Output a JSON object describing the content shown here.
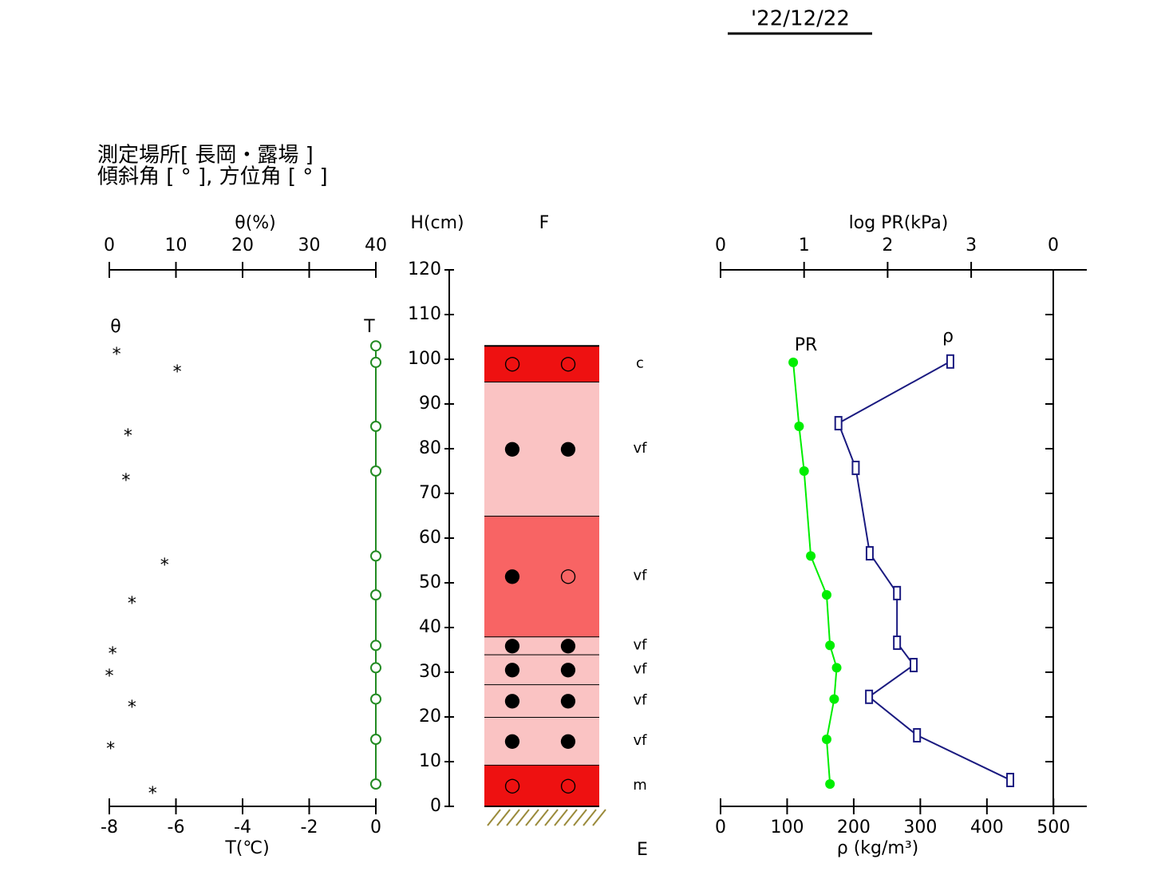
{
  "header": {
    "date": "'22/12/22",
    "site": "測定場所[ 長岡・露場 ]",
    "angles": "傾斜角 [ ° ], 方位角 [ ° ]"
  },
  "chart_data": [
    {
      "type": "profile",
      "xlabel_top": "θ(%)",
      "xlim_top": [
        0,
        40
      ],
      "xticks_top": [
        0,
        10,
        20,
        30,
        40
      ],
      "xlabel": "T(℃)",
      "xlim": [
        -8,
        0
      ],
      "xticks": [
        -8,
        -6,
        -4,
        -2,
        0
      ],
      "series": [
        {
          "name": "θ",
          "axis": "top",
          "marker": "*",
          "color": "#000000",
          "line": false,
          "values": [
            1.1,
            10.2,
            2.8,
            2.5,
            8.3,
            3.4,
            0.5,
            0,
            3.4,
            0.2,
            6.5
          ],
          "heights": [
            101.6,
            97.7,
            83.4,
            73.4,
            54.5,
            45.9,
            34.6,
            29.6,
            22.7,
            13.4,
            3.4
          ]
        },
        {
          "name": "T",
          "axis": "bottom",
          "marker": "open-circle",
          "color": "#228b22",
          "line": true,
          "values": [
            0,
            0,
            0,
            0,
            0,
            0,
            0,
            0,
            0,
            0,
            0
          ],
          "heights": [
            103,
            99.3,
            85,
            75,
            56,
            47.3,
            36,
            31,
            24,
            15,
            5
          ]
        }
      ]
    },
    {
      "type": "layers",
      "ylabel": "H(cm)",
      "ylim": [
        0,
        120
      ],
      "yticks": [
        0,
        10,
        20,
        30,
        40,
        50,
        60,
        70,
        80,
        90,
        100,
        110,
        120
      ],
      "title": "F",
      "ground_label": "E",
      "layers": [
        {
          "bottom": 0,
          "top": 9.3,
          "color": "#ee1111",
          "shapes": [
            "○",
            "○"
          ],
          "size": "m"
        },
        {
          "bottom": 9.3,
          "top": 20,
          "color": "#fac3c3",
          "shapes": [
            "●",
            "●"
          ],
          "size": "vf"
        },
        {
          "bottom": 20,
          "top": 27.3,
          "color": "#fac3c3",
          "shapes": [
            "●",
            "●"
          ],
          "size": "vf"
        },
        {
          "bottom": 27.3,
          "top": 34,
          "color": "#fac3c3",
          "shapes": [
            "●",
            "●"
          ],
          "size": "vf"
        },
        {
          "bottom": 34,
          "top": 38,
          "color": "#fac3c3",
          "shapes": [
            "●",
            "●"
          ],
          "size": "vf"
        },
        {
          "bottom": 38,
          "top": 65,
          "color": "#f86464",
          "shapes": [
            "●",
            "○"
          ],
          "size": "vf"
        },
        {
          "bottom": 65,
          "top": 95,
          "color": "#fac3c3",
          "shapes": [
            "●",
            "●"
          ],
          "size": "vf"
        },
        {
          "bottom": 95,
          "top": 103,
          "color": "#ee1111",
          "shapes": [
            "○",
            "○"
          ],
          "size": "c"
        }
      ]
    },
    {
      "type": "profile",
      "xlabel_top": "log PR(kPa)",
      "xlim_top": [
        0,
        4.384
      ],
      "xticks_top": [
        0,
        1,
        2,
        3
      ],
      "corner_label": "0",
      "xlabel": "ρ (kg/m³)",
      "xlim": [
        0,
        550
      ],
      "xticks": [
        0,
        100,
        200,
        300,
        400,
        500
      ],
      "series": [
        {
          "name": "PR",
          "axis": "top",
          "marker": "filled-circle",
          "color": "#00ee00",
          "line": true,
          "values": [
            0.87,
            0.94,
            1.0,
            1.08,
            1.27,
            1.31,
            1.39,
            1.36,
            1.27,
            1.31
          ],
          "heights": [
            99.3,
            85,
            75,
            56,
            47.3,
            36,
            31,
            24,
            15,
            5
          ]
        },
        {
          "name": "ρ",
          "axis": "bottom",
          "marker": "open-square",
          "color": "#1a1a80",
          "line": true,
          "values": [
            345,
            177,
            203,
            224,
            265,
            265,
            290,
            223,
            295,
            435
          ],
          "heights": [
            99.5,
            85.7,
            75.7,
            56.6,
            47.7,
            36.6,
            31.6,
            24.5,
            15.9,
            5.9
          ]
        }
      ]
    }
  ]
}
